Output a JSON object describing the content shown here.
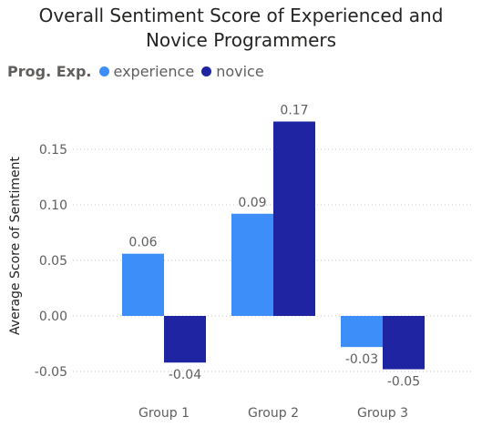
{
  "chart_data": {
    "type": "bar",
    "title_lines": [
      "Overall Sentiment Score of Experienced and",
      "Novice Programmers"
    ],
    "legend_title": "Prog. Exp.",
    "legend_placement": "top-left",
    "categories": [
      "Group 1",
      "Group 2",
      "Group 3"
    ],
    "series": [
      {
        "name": "experience",
        "color": "#3D8EF8",
        "values": [
          0.056,
          0.092,
          -0.028
        ],
        "labels": [
          "0.06",
          "0.09",
          "-0.03"
        ]
      },
      {
        "name": "novice",
        "color": "#1F24A3",
        "values": [
          -0.042,
          0.175,
          -0.048
        ],
        "labels": [
          "-0.04",
          "0.17",
          "-0.05"
        ]
      }
    ],
    "ylabel": "Average Score of Sentiment",
    "xlabel": "",
    "ylim": [
      -0.05,
      0.175
    ],
    "yticks": [
      -0.05,
      0.0,
      0.05,
      0.1,
      0.15
    ],
    "ytick_labels": [
      "-0.05",
      "0.00",
      "0.05",
      "0.10",
      "0.15"
    ],
    "grid": true
  }
}
